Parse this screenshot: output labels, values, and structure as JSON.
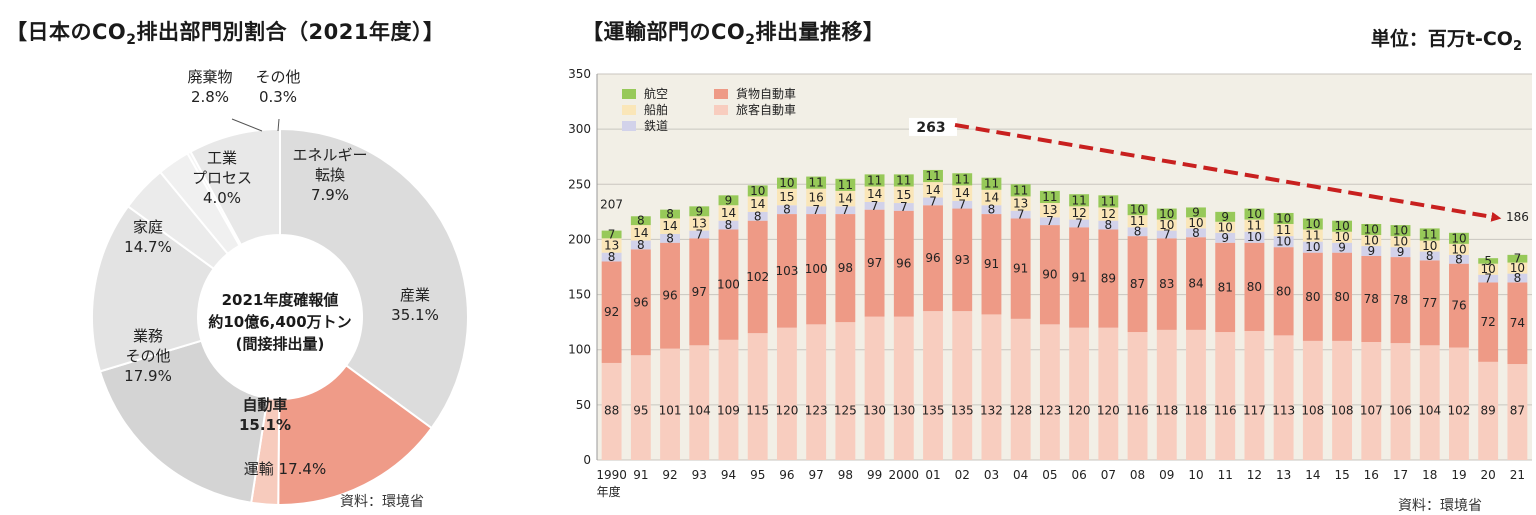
{
  "pie": {
    "title_main": "【日本のCO",
    "title_sub": "2",
    "title_rest": "排出部門別割合（2021年度）】",
    "center_lines": [
      "2021年度確報値",
      "約10億6,400万トン",
      "(間接排出量)"
    ],
    "source": "資料：環境省"
  },
  "bar": {
    "title_main": "【運輸部門のCO",
    "title_sub": "2",
    "title_rest": "排出量推移】",
    "unit_main": "単位：百万t-CO",
    "unit_sub": "2",
    "source": "資料：環境省",
    "peak_label": "263",
    "start_total_label": "207",
    "end_total_label": "186",
    "year_suffix": "年度"
  },
  "chart_data": [
    {
      "type": "pie",
      "donut": true,
      "slices": [
        {
          "label": "産業",
          "value": 35.1,
          "value_text": "35.1%",
          "color": "#dcdcdc"
        },
        {
          "label": "自動車",
          "value": 15.1,
          "value_text": "15.1%",
          "color": "#ef9b88",
          "group": "運輸 17.4%"
        },
        {
          "label": "運輸（自動車以外）",
          "value": 2.3,
          "color": "#f7cbbd",
          "group": "運輸 17.4%"
        },
        {
          "label": "業務 その他",
          "value": 17.9,
          "value_text": "17.9%",
          "color": "#d4d4d4"
        },
        {
          "label": "家庭",
          "value": 14.7,
          "value_text": "14.7%",
          "color": "#e3e3e3"
        },
        {
          "label": "工業 プロセス",
          "value": 4.0,
          "value_text": "4.0%",
          "color": "#ebebeb"
        },
        {
          "label": "廃棄物",
          "value": 2.8,
          "value_text": "2.8%",
          "color": "#f0f0f0"
        },
        {
          "label": "その他",
          "value": 0.3,
          "value_text": "0.3%",
          "color": "#f4f4f4"
        },
        {
          "label": "エネルギー 転換",
          "value": 7.9,
          "value_text": "7.9%",
          "color": "#e8e8e8"
        }
      ],
      "outer_labels": [
        {
          "lines": [
            "産業",
            "35.1%"
          ]
        },
        {
          "lines": [
            "自動車",
            "15.1%"
          ]
        },
        {
          "lines": [
            "運輸 17.4%"
          ]
        },
        {
          "lines": [
            "業務",
            "その他",
            "17.9%"
          ]
        },
        {
          "lines": [
            "家庭",
            "14.7%"
          ]
        },
        {
          "lines": [
            "工業",
            "プロセス",
            "4.0%"
          ]
        },
        {
          "lines": [
            "廃棄物",
            "2.8%"
          ]
        },
        {
          "lines": [
            "その他",
            "0.3%"
          ]
        },
        {
          "lines": [
            "エネルギー",
            "転換",
            "7.9%"
          ]
        }
      ]
    },
    {
      "type": "bar",
      "stacked": true,
      "categories": [
        "1990",
        "91",
        "92",
        "93",
        "94",
        "95",
        "96",
        "97",
        "98",
        "99",
        "2000",
        "01",
        "02",
        "03",
        "04",
        "05",
        "06",
        "07",
        "08",
        "09",
        "10",
        "11",
        "12",
        "13",
        "14",
        "15",
        "16",
        "17",
        "18",
        "19",
        "20",
        "21"
      ],
      "ylim": [
        0,
        350
      ],
      "yticks": [
        0,
        50,
        100,
        150,
        200,
        250,
        300,
        350
      ],
      "grid": true,
      "legend_position": "top-left",
      "series": [
        {
          "name": "旅客自動車",
          "color": "#f8cdbf",
          "values": [
            88,
            95,
            101,
            104,
            109,
            115,
            120,
            123,
            125,
            130,
            130,
            135,
            135,
            132,
            128,
            123,
            120,
            120,
            116,
            118,
            118,
            116,
            117,
            113,
            108,
            108,
            107,
            106,
            104,
            102,
            89,
            87
          ]
        },
        {
          "name": "貨物自動車",
          "color": "#ee9a86",
          "values": [
            92,
            96,
            96,
            97,
            100,
            102,
            103,
            100,
            98,
            97,
            96,
            96,
            93,
            91,
            91,
            90,
            91,
            89,
            87,
            83,
            84,
            81,
            80,
            80,
            80,
            80,
            78,
            78,
            77,
            76,
            72,
            74
          ]
        },
        {
          "name": "鉄道",
          "color": "#d2d2ea",
          "values": [
            8,
            8,
            8,
            7,
            8,
            8,
            8,
            7,
            7,
            7,
            7,
            7,
            7,
            8,
            7,
            7,
            7,
            8,
            8,
            7,
            8,
            9,
            10,
            10,
            10,
            9,
            9,
            9,
            8,
            8,
            7,
            8
          ]
        },
        {
          "name": "船舶",
          "color": "#fae6b8",
          "values": [
            13,
            14,
            14,
            13,
            14,
            14,
            15,
            16,
            14,
            14,
            15,
            14,
            14,
            14,
            13,
            13,
            12,
            12,
            11,
            10,
            10,
            10,
            11,
            11,
            11,
            10,
            10,
            10,
            10,
            10,
            10,
            10
          ]
        },
        {
          "name": "航空",
          "color": "#97c959",
          "values": [
            7,
            8,
            8,
            9,
            9,
            10,
            10,
            11,
            11,
            11,
            11,
            11,
            11,
            11,
            11,
            11,
            11,
            11,
            10,
            10,
            9,
            9,
            10,
            10,
            10,
            10,
            10,
            10,
            11,
            10,
            5,
            7
          ]
        }
      ],
      "annotations": {
        "start_total": {
          "category": "1990",
          "value": 207
        },
        "peak_total": {
          "category": "01",
          "value": 263
        },
        "end_total": {
          "category": "21",
          "value": 186
        },
        "trend_arrow": {
          "from": "01",
          "to": "21",
          "color": "#c8201f"
        }
      }
    }
  ]
}
